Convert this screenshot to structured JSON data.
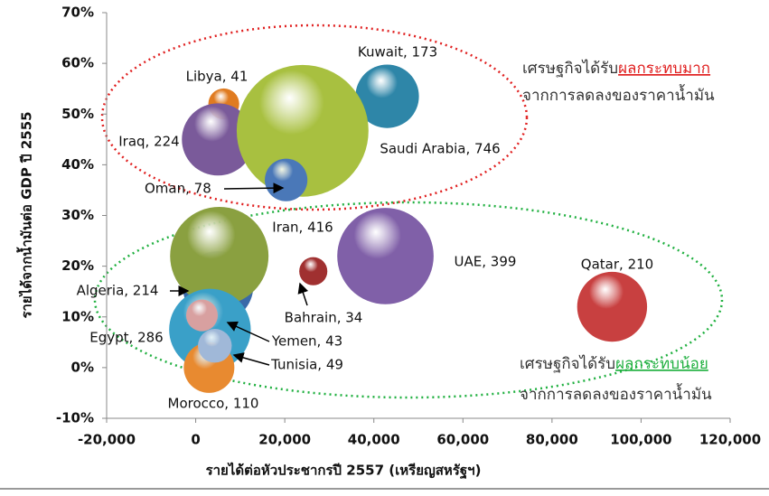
{
  "chart_data": {
    "type": "bubble",
    "x_label": "รายได้ต่อหัวประชากรปี 2557 (เหรียญสหรัฐฯ)",
    "y_label": "รายได้จากน้ำมันต่อ GDP ปี 2555",
    "xlim": [
      -20000,
      120000
    ],
    "xticks": [
      {
        "value": -20000,
        "label": "-20,000"
      },
      0,
      {
        "value": 20000,
        "label": "20,000"
      },
      {
        "value": 40000,
        "label": "40,000"
      },
      {
        "value": 60000,
        "label": "60,000"
      },
      {
        "value": 80000,
        "label": "80,000"
      },
      {
        "value": 100000,
        "label": "100,000"
      },
      {
        "value": 120000,
        "label": "120,000"
      }
    ],
    "ylim": [
      -10,
      70
    ],
    "yticks": [
      {
        "value": -10,
        "label": "-10%"
      },
      {
        "value": 0,
        "label": "0%"
      },
      {
        "value": 10,
        "label": "10%"
      },
      {
        "value": 20,
        "label": "20%"
      },
      {
        "value": 30,
        "label": "30%"
      },
      {
        "value": 40,
        "label": "40%"
      },
      {
        "value": 50,
        "label": "50%"
      },
      {
        "value": 60,
        "label": "60%"
      },
      {
        "value": 70,
        "label": "70%"
      }
    ],
    "grid": false,
    "labels": [
      "Libya, 41",
      "Kuwait, 173",
      "Iraq, 224",
      "Saudi Arabia, 746",
      "Oman, 78",
      "Algeria, 214",
      "Iran, 416",
      "UAE, 399",
      "Bahrain, 34",
      "Qatar, 210",
      "Egypt, 286",
      "Morocco, 110",
      "Yemen, 43",
      "Tunisia, 49"
    ],
    "x": [
      6300,
      43000,
      5000,
      24000,
      20300,
      5000,
      5300,
      42600,
      26400,
      93500,
      3200,
      3000,
      1400,
      4300
    ],
    "values": [
      52,
      53.5,
      45,
      46.7,
      37,
      16,
      22,
      22,
      19,
      12,
      7.5,
      0,
      10.3,
      4.3
    ],
    "sizes": [
      41,
      173,
      224,
      746,
      78,
      214,
      416,
      399,
      34,
      210,
      286,
      110,
      43,
      49
    ],
    "colors": [
      "#e07b20",
      "#2e86a8",
      "#7a5a9a",
      "#a8c040",
      "#4a78b8",
      "#3a6aa8",
      "#8aa040",
      "#8060a8",
      "#a03030",
      "#c84040",
      "#3aa0c8",
      "#e88a30",
      "#d8a0a0",
      "#a0b8d8"
    ],
    "annotations": [
      {
        "text": "เศรษฐกิจได้รับ",
        "highlight": "ผลกระทบมาก",
        "highlight_color": "#e02020",
        "line2": "จากการลดลงของราคาน้ำมัน"
      },
      {
        "text": "เศรษฐกิจได้รับ",
        "highlight": "ผลกระทบน้อย",
        "highlight_color": "#20b040",
        "line2": "จากการลดลงของราคาน้ำมัน"
      }
    ]
  }
}
